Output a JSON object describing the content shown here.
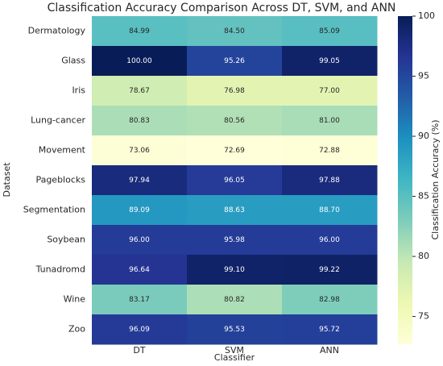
{
  "chart_data": {
    "type": "heatmap",
    "title": "Classification Accuracy Comparison Across DT, SVM, and ANN",
    "x_label": "Classifier",
    "y_label": "Dataset",
    "colorbar_label": "Classification Accuracy (%)",
    "colormap": "YlGnBu",
    "columns": [
      "DT",
      "SVM",
      "ANN"
    ],
    "rows": [
      "Dermatology",
      "Glass",
      "Iris",
      "Lung-cancer",
      "Movement",
      "Pageblocks",
      "Segmentation",
      "Soybean",
      "Tunadromd",
      "Wine",
      "Zoo"
    ],
    "values": [
      [
        84.99,
        84.5,
        85.09
      ],
      [
        100,
        95.26,
        99.05
      ],
      [
        78.67,
        76.98,
        77
      ],
      [
        80.83,
        80.56,
        81
      ],
      [
        73.06,
        72.69,
        72.88
      ],
      [
        97.94,
        96.05,
        97.88
      ],
      [
        89.09,
        88.63,
        88.7
      ],
      [
        96,
        95.98,
        96
      ],
      [
        96.64,
        99.1,
        99.22
      ],
      [
        83.17,
        80.82,
        82.98
      ],
      [
        96.09,
        95.53,
        95.72
      ]
    ],
    "value_labels": [
      [
        "84.99",
        "84.50",
        "85.09"
      ],
      [
        "100.00",
        "95.26",
        "99.05"
      ],
      [
        "78.67",
        "76.98",
        "77.00"
      ],
      [
        "80.83",
        "80.56",
        "81.00"
      ],
      [
        "73.06",
        "72.69",
        "72.88"
      ],
      [
        "97.94",
        "96.05",
        "97.88"
      ],
      [
        "89.09",
        "88.63",
        "88.70"
      ],
      [
        "96.00",
        "95.98",
        "96.00"
      ],
      [
        "96.64",
        "99.10",
        "99.22"
      ],
      [
        "83.17",
        "80.82",
        "82.98"
      ],
      [
        "96.09",
        "95.53",
        "95.72"
      ]
    ],
    "zlim": [
      72.69,
      100
    ],
    "zticks": [
      75,
      80,
      85,
      90,
      95,
      100
    ]
  }
}
